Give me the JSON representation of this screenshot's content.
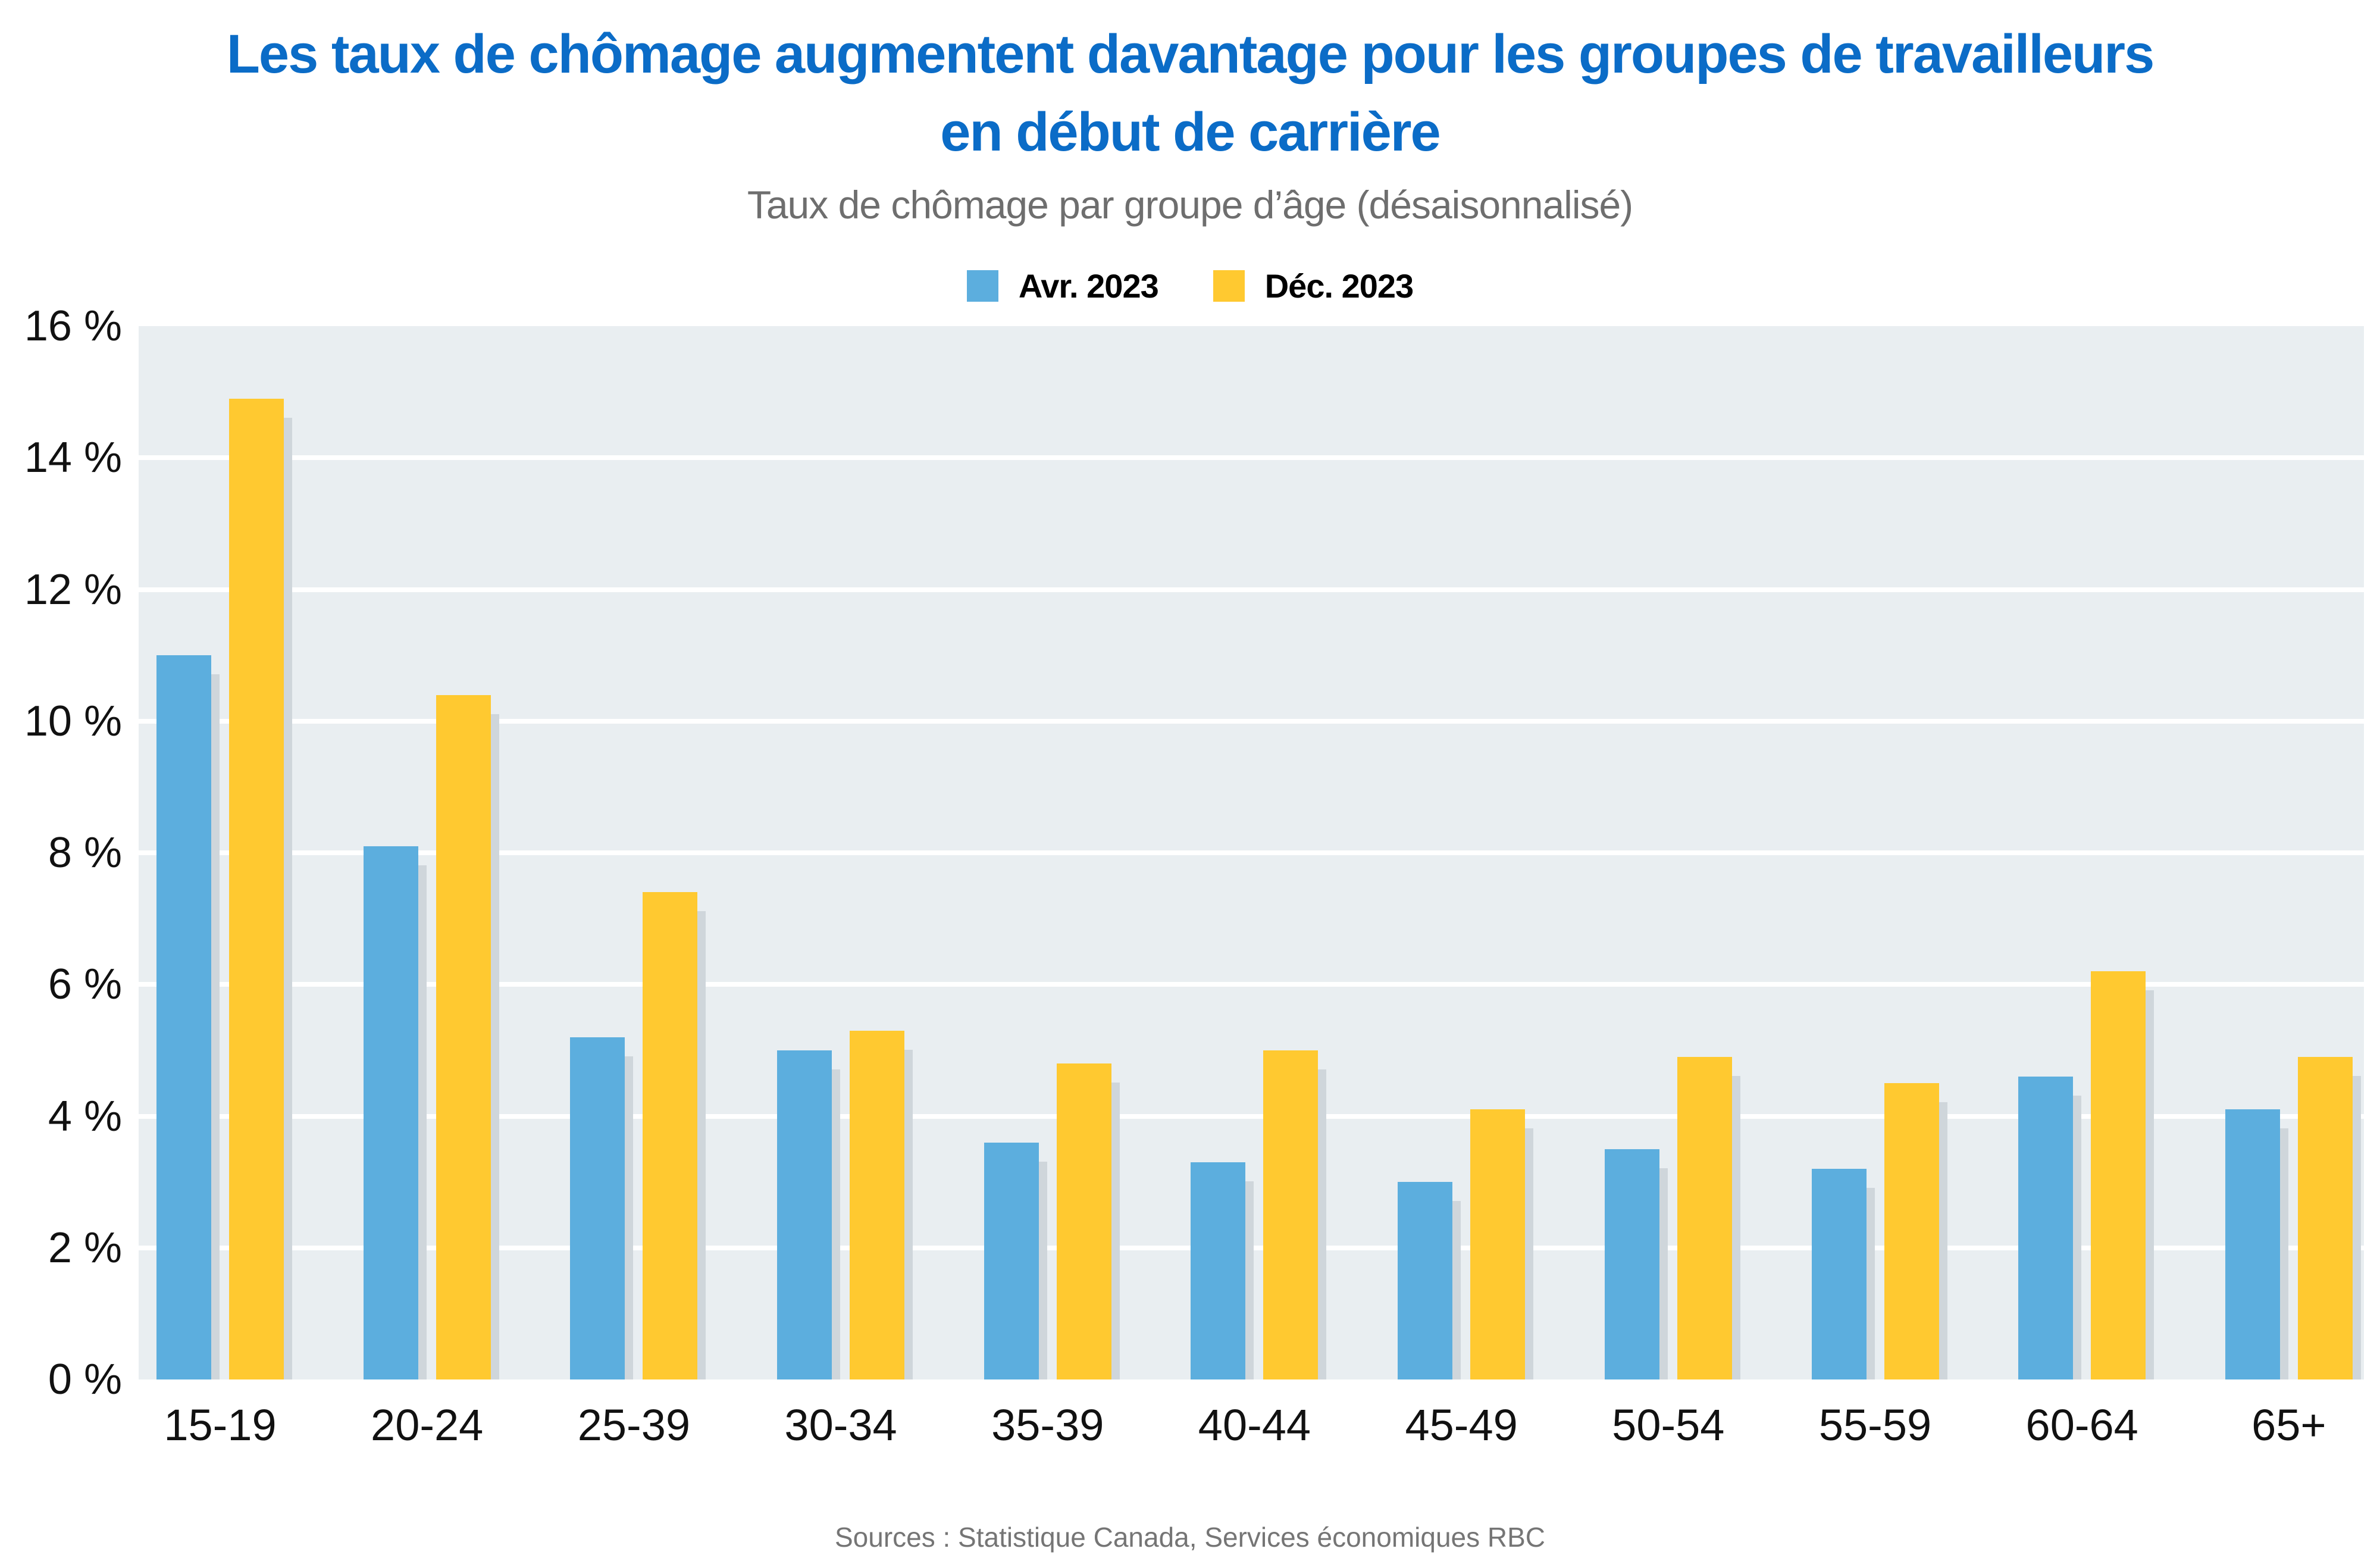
{
  "title": {
    "line1": "Les taux de chômage augmentent davantage pour les groupes de travailleurs",
    "line2": "en début de carrière"
  },
  "subtitle": "Taux de chômage par groupe d’âge (désaisonnalisé)",
  "source": "Sources : Statistique Canada, Services économiques RBC",
  "colors": {
    "title_blue": "#0B6CC7",
    "subtitle_gray": "#6E6E6E",
    "source_gray": "#757575",
    "axis_text": "#111111",
    "plot_background": "#E9EEF1",
    "gridline": "#FFFFFF",
    "bar_shadow": "#CFD6DB",
    "series_april_blue": "#5CAEDE",
    "series_december_yellow": "#FFC930"
  },
  "chart_data": {
    "type": "bar",
    "title": "Les taux de chômage augmentent davantage pour les groupes de travailleurs en début de carrière",
    "subtitle": "Taux de chômage par groupe d’âge (désaisonnalisé)",
    "categories": [
      "15-19",
      "20-24",
      "25-39",
      "30-34",
      "35-39",
      "40-44",
      "45-49",
      "50-54",
      "55-59",
      "60-64",
      "65+"
    ],
    "series": [
      {
        "name": "Avr. 2023",
        "color": "#5CAEDE",
        "values": [
          11.0,
          8.1,
          5.2,
          5.0,
          3.6,
          3.3,
          3.0,
          3.5,
          3.2,
          4.6,
          4.1
        ]
      },
      {
        "name": "Déc. 2023",
        "color": "#FFC930",
        "values": [
          14.9,
          10.4,
          7.4,
          5.3,
          4.8,
          5.0,
          4.1,
          4.9,
          4.5,
          6.2,
          4.9
        ]
      }
    ],
    "xlabel": "",
    "ylabel": "",
    "ylim": [
      0,
      16
    ],
    "ytick_values": [
      0,
      2,
      4,
      6,
      8,
      10,
      12,
      14,
      16
    ],
    "ytick_labels": [
      "0 %",
      "2 %",
      "4 %",
      "6 %",
      "8 %",
      "10 %",
      "12 %",
      "14 %",
      "16 %"
    ],
    "grid": true,
    "legend_position": "top"
  }
}
